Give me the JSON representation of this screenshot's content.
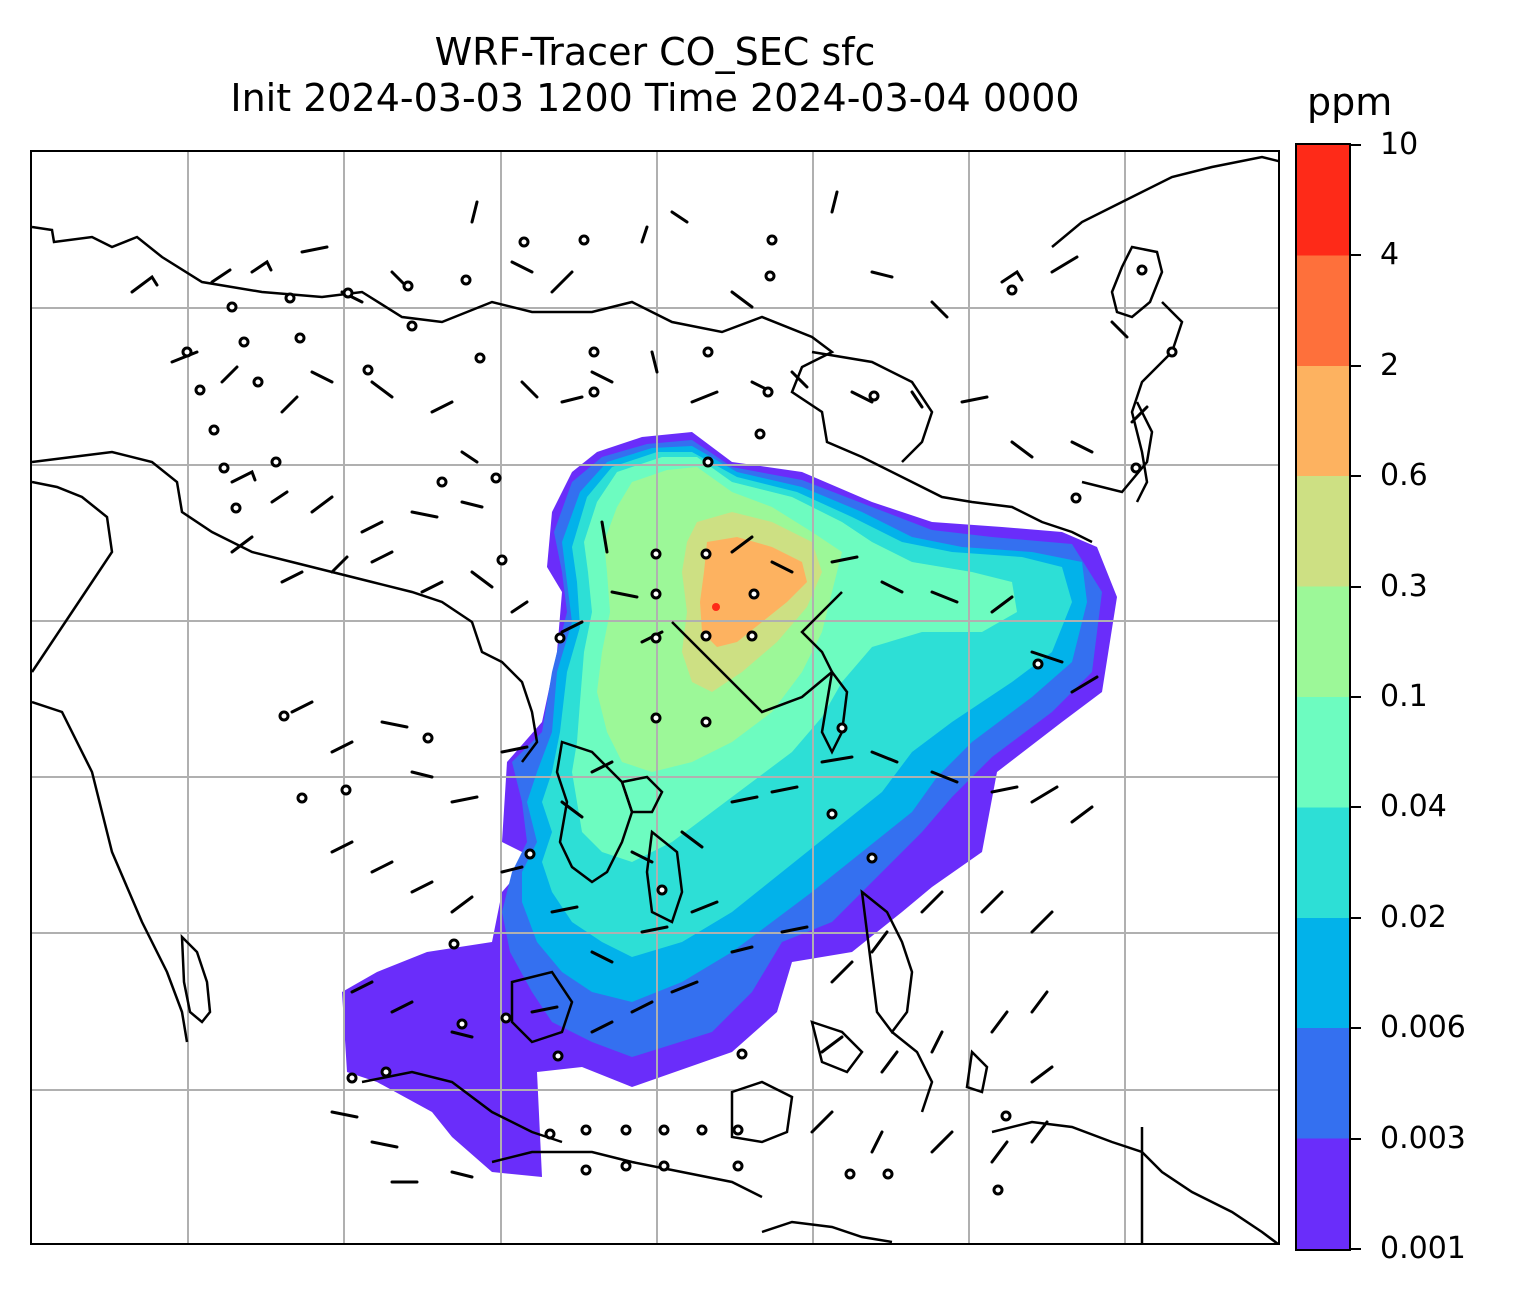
{
  "title": {
    "line1": "WRF-Tracer CO_SEC sfc",
    "line2": "Init 2024-03-03 1200 Time 2024-03-04 0000"
  },
  "colorbar": {
    "unit": "ppm",
    "ticks": [
      "10",
      "4",
      "2",
      "0.6",
      "0.3",
      "0.1",
      "0.04",
      "0.02",
      "0.006",
      "0.003",
      "0.001"
    ],
    "colors": [
      "#6a2dfa",
      "#3470f0",
      "#02b2ea",
      "#2ddfd6",
      "#6dfcc0",
      "#9cf898",
      "#cde083",
      "#fdb260",
      "#fe703b",
      "#fe2a18"
    ]
  },
  "map": {
    "gridline_color": "#b0b0b0",
    "coastline_color": "#000000",
    "wind_barb_color": "#000000"
  }
}
